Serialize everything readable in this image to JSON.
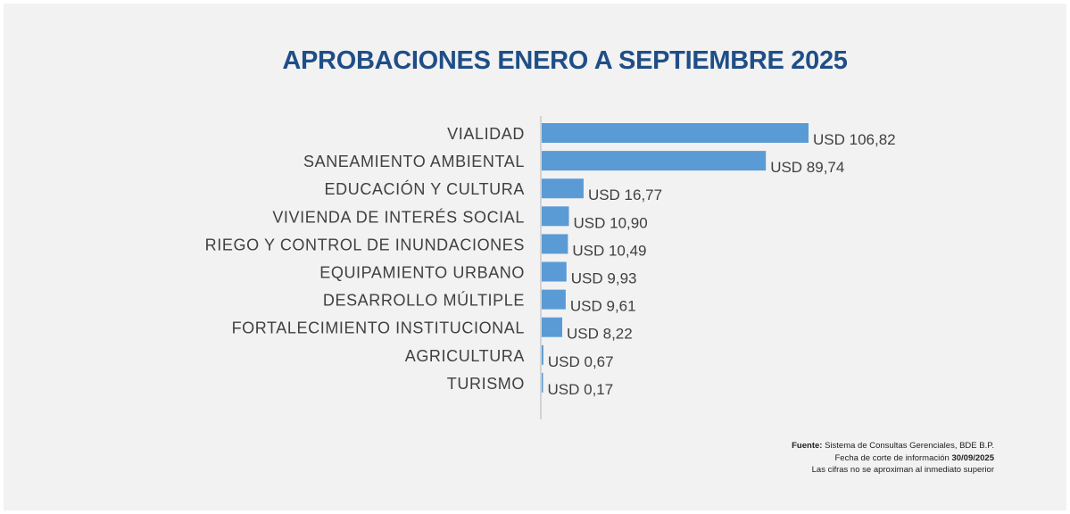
{
  "title": "APROBACIONES ENERO A SEPTIEMBRE  2025",
  "colors": {
    "bar": "#5b9bd5",
    "title": "#1f4e87",
    "background": "#f2f2f2",
    "axis": "#bfbfbf"
  },
  "chart_data": {
    "type": "bar",
    "orientation": "horizontal",
    "title": "APROBACIONES ENERO A SEPTIEMBRE  2025",
    "xlabel": "",
    "ylabel": "",
    "grid": false,
    "xlim": [
      0,
      106.82
    ],
    "categories": [
      "VIALIDAD",
      "SANEAMIENTO AMBIENTAL",
      "EDUCACIÓN Y CULTURA",
      "VIVIENDA DE INTERÉS SOCIAL",
      "RIEGO Y CONTROL DE INUNDACIONES",
      "EQUIPAMIENTO URBANO",
      "DESARROLLO MÚLTIPLE",
      "FORTALECIMIENTO INSTITUCIONAL",
      "AGRICULTURA",
      "TURISMO"
    ],
    "values": [
      106.82,
      89.74,
      16.77,
      10.9,
      10.49,
      9.93,
      9.61,
      8.22,
      0.67,
      0.17
    ],
    "data_labels": [
      "USD 106,82",
      "USD 89,74",
      "USD 16,77",
      "USD 10,90",
      "USD 10,49",
      "USD 9,93",
      "USD 9,61",
      "USD 8,22",
      "USD 0,67",
      "USD 0,17"
    ]
  },
  "footer": {
    "source_label": "Fuente:",
    "source_text": " Sistema de Consultas Gerenciales, BDE B.P.",
    "cutoff_text": "Fecha de corte de información ",
    "cutoff_date": "30/09/2025",
    "note": "Las cifras no se aproximan al inmediato superior"
  }
}
